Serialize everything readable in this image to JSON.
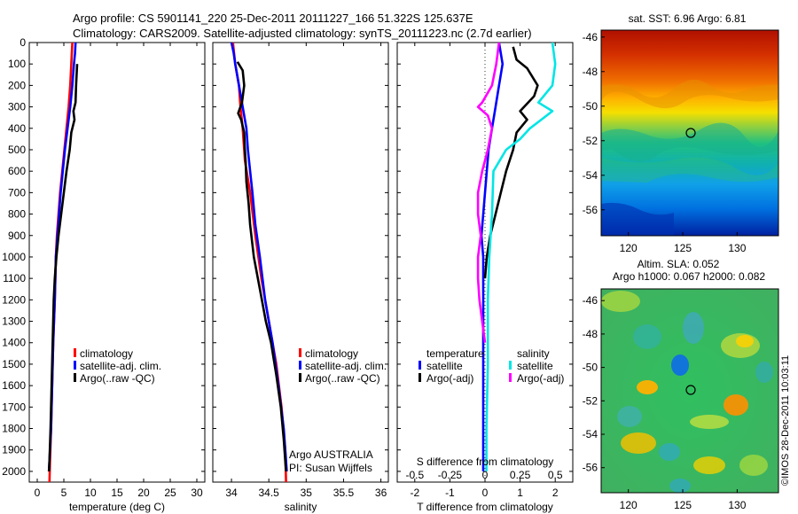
{
  "header": {
    "line1": "Argo profile: CS 5901141_220 25-Dec-2011 20111227_166 51.322S 125.637E",
    "line2": "Climatology: CARS2009. Satellite-adjusted climatology: synTS_20111223.nc (2.7d earlier)"
  },
  "colors": {
    "climatology": "#ff0000",
    "satellite": "#0000ff",
    "argo": "#000000",
    "sal_satellite": "#00e5e5",
    "sal_argo": "#ff00ff"
  },
  "chart_data": [
    {
      "type": "line",
      "xlabel": "temperature (deg C)",
      "ylabel": "",
      "xlim": [
        -1.5,
        31.5
      ],
      "ylim": [
        2050,
        0
      ],
      "xticks": [
        0,
        5,
        10,
        15,
        20,
        25,
        30
      ],
      "yticks": [
        0,
        100,
        200,
        300,
        400,
        500,
        600,
        700,
        800,
        900,
        1000,
        1100,
        1200,
        1300,
        1400,
        1500,
        1600,
        1700,
        1800,
        1900,
        2000
      ],
      "legend": [
        "climatology",
        "satellite-adj. clim.",
        "Argo(..raw -QC)"
      ],
      "series": [
        {
          "name": "climatology",
          "color": "climatology",
          "points": [
            [
              6.6,
              0
            ],
            [
              6.5,
              50
            ],
            [
              6.4,
              100
            ],
            [
              6.2,
              200
            ],
            [
              5.9,
              300
            ],
            [
              5.5,
              400
            ],
            [
              5.1,
              500
            ],
            [
              4.7,
              600
            ],
            [
              4.3,
              700
            ],
            [
              4.0,
              800
            ],
            [
              3.7,
              900
            ],
            [
              3.5,
              1000
            ],
            [
              3.3,
              1200
            ],
            [
              3.0,
              1400
            ],
            [
              2.8,
              1600
            ],
            [
              2.6,
              1800
            ],
            [
              2.4,
              1950
            ],
            [
              2.3,
              2050
            ]
          ]
        },
        {
          "name": "satellite-adj. clim.",
          "color": "satellite",
          "points": [
            [
              7.2,
              0
            ],
            [
              7.1,
              50
            ],
            [
              6.9,
              100
            ],
            [
              6.6,
              200
            ],
            [
              6.2,
              300
            ],
            [
              5.7,
              400
            ],
            [
              5.2,
              500
            ],
            [
              4.8,
              600
            ],
            [
              4.4,
              700
            ],
            [
              4.1,
              800
            ],
            [
              3.8,
              900
            ],
            [
              3.5,
              1000
            ],
            [
              3.3,
              1200
            ],
            [
              3.0,
              1400
            ],
            [
              2.8,
              1600
            ],
            [
              2.6,
              1800
            ],
            [
              2.3,
              1950
            ],
            [
              2.2,
              2000
            ]
          ]
        },
        {
          "name": "Argo(..raw -QC)",
          "color": "argo",
          "points": [
            [
              7.5,
              100
            ],
            [
              7.3,
              200
            ],
            [
              7.2,
              280
            ],
            [
              6.8,
              320
            ],
            [
              7.0,
              360
            ],
            [
              6.4,
              420
            ],
            [
              6.1,
              500
            ],
            [
              5.5,
              600
            ],
            [
              5.0,
              700
            ],
            [
              4.5,
              800
            ],
            [
              4.0,
              900
            ],
            [
              3.6,
              1000
            ],
            [
              3.3,
              1100
            ],
            [
              3.1,
              1200
            ],
            [
              2.9,
              1400
            ],
            [
              2.7,
              1600
            ],
            [
              2.5,
              1800
            ],
            [
              2.3,
              1950
            ],
            [
              2.2,
              2000
            ]
          ]
        }
      ]
    },
    {
      "type": "line",
      "xlabel": "salinity",
      "ylabel": "",
      "xlim": [
        33.75,
        36.1
      ],
      "ylim": [
        2050,
        0
      ],
      "xticks": [
        34,
        34.5,
        35,
        35.5,
        36
      ],
      "legend": [
        "climatology",
        "satellite-adj. clim.",
        "Argo(..raw -QC)"
      ],
      "annotation": [
        "Argo AUSTRALIA",
        "PI: Susan Wijffels"
      ],
      "series": [
        {
          "name": "climatology",
          "color": "climatology",
          "points": [
            [
              34.02,
              0
            ],
            [
              34.05,
              100
            ],
            [
              34.1,
              200
            ],
            [
              34.12,
              300
            ],
            [
              34.15,
              400
            ],
            [
              34.17,
              500
            ],
            [
              34.18,
              550
            ],
            [
              34.25,
              700
            ],
            [
              34.32,
              900
            ],
            [
              34.4,
              1100
            ],
            [
              34.5,
              1300
            ],
            [
              34.6,
              1500
            ],
            [
              34.67,
              1700
            ],
            [
              34.72,
              1900
            ],
            [
              34.73,
              2050
            ]
          ]
        },
        {
          "name": "satellite-adj. clim.",
          "color": "satellite",
          "points": [
            [
              34.0,
              0
            ],
            [
              34.03,
              50
            ],
            [
              34.05,
              100
            ],
            [
              34.1,
              200
            ],
            [
              34.15,
              300
            ],
            [
              34.2,
              400
            ],
            [
              34.22,
              500
            ],
            [
              34.25,
              600
            ],
            [
              34.28,
              700
            ],
            [
              34.32,
              850
            ],
            [
              34.38,
              1000
            ],
            [
              34.45,
              1200
            ],
            [
              34.55,
              1400
            ],
            [
              34.63,
              1600
            ],
            [
              34.7,
              1800
            ],
            [
              34.73,
              1950
            ],
            [
              34.74,
              2000
            ]
          ]
        },
        {
          "name": "Argo(..raw -QC)",
          "color": "argo",
          "points": [
            [
              34.08,
              90
            ],
            [
              34.15,
              130
            ],
            [
              34.17,
              200
            ],
            [
              34.14,
              280
            ],
            [
              34.09,
              330
            ],
            [
              34.13,
              360
            ],
            [
              34.17,
              420
            ],
            [
              34.18,
              500
            ],
            [
              34.19,
              560
            ],
            [
              34.2,
              650
            ],
            [
              34.23,
              750
            ],
            [
              34.25,
              850
            ],
            [
              34.3,
              1000
            ],
            [
              34.38,
              1150
            ],
            [
              34.46,
              1300
            ],
            [
              34.53,
              1400
            ],
            [
              34.6,
              1550
            ],
            [
              34.66,
              1700
            ],
            [
              34.7,
              1850
            ],
            [
              34.72,
              1950
            ],
            [
              34.73,
              2000
            ]
          ]
        }
      ]
    },
    {
      "type": "line",
      "xlabel": "T difference from climatology",
      "x2label": "S difference from climatology",
      "ylabel": "",
      "xlim": [
        -2.5,
        2.5
      ],
      "x2lim": [
        -0.625,
        0.625
      ],
      "ylim": [
        2050,
        0
      ],
      "xticks": [
        -2,
        -1,
        0,
        1,
        2
      ],
      "x2ticks": [
        "-0.5",
        "-0.25",
        "0",
        "0.25",
        "0.5"
      ],
      "legend_temperature": {
        "title": "temperature",
        "items": [
          "satellite",
          "Argo(-adj)"
        ]
      },
      "legend_salinity": {
        "title": "salinity",
        "items": [
          "satellite",
          "Argo(-adj)"
        ]
      },
      "series": [
        {
          "name": "satellite",
          "group": "temperature",
          "color": "satellite",
          "points": [
            [
              0.4,
              0
            ],
            [
              0.45,
              50
            ],
            [
              0.5,
              100
            ],
            [
              0.4,
              200
            ],
            [
              0.3,
              300
            ],
            [
              0.2,
              400
            ],
            [
              0.1,
              500
            ],
            [
              0.05,
              600
            ],
            [
              0,
              700
            ],
            [
              -0.05,
              800
            ],
            [
              -0.1,
              900
            ],
            [
              -0.05,
              1000
            ],
            [
              -0.05,
              1200
            ],
            [
              -0.05,
              1400
            ],
            [
              -0.05,
              1600
            ],
            [
              -0.05,
              1800
            ],
            [
              -0.05,
              2000
            ]
          ]
        },
        {
          "name": "Argo(-adj)",
          "group": "temperature",
          "color": "argo",
          "points": [
            [
              0.8,
              20
            ],
            [
              0.9,
              80
            ],
            [
              1.2,
              120
            ],
            [
              1.5,
              200
            ],
            [
              1.4,
              250
            ],
            [
              1.0,
              320
            ],
            [
              1.2,
              360
            ],
            [
              0.9,
              420
            ],
            [
              0.8,
              500
            ],
            [
              0.6,
              600
            ],
            [
              0.45,
              700
            ],
            [
              0.3,
              800
            ],
            [
              0.15,
              900
            ],
            [
              0.05,
              1000
            ],
            [
              0,
              1100
            ]
          ]
        },
        {
          "name": "satellite",
          "group": "salinity",
          "color": "sal_satellite",
          "points": [
            [
              0.48,
              0
            ],
            [
              0.5,
              100
            ],
            [
              0.48,
              200
            ],
            [
              0.38,
              280
            ],
            [
              0.48,
              320
            ],
            [
              0.4,
              360
            ],
            [
              0.32,
              400
            ],
            [
              0.25,
              450
            ],
            [
              0.15,
              500
            ],
            [
              0.06,
              600
            ],
            [
              0.05,
              800
            ],
            [
              0.03,
              1000
            ],
            [
              0.02,
              1200
            ],
            [
              0.02,
              1500
            ],
            [
              0.01,
              1800
            ],
            [
              0.01,
              2000
            ]
          ]
        },
        {
          "name": "Argo(-adj)",
          "group": "salinity",
          "color": "sal_argo",
          "points": [
            [
              0.1,
              0
            ],
            [
              0.08,
              100
            ],
            [
              0.05,
              200
            ],
            [
              -0.02,
              280
            ],
            [
              -0.05,
              300
            ],
            [
              0.02,
              340
            ],
            [
              0.05,
              400
            ],
            [
              0.02,
              500
            ],
            [
              -0.02,
              600
            ],
            [
              -0.05,
              700
            ],
            [
              -0.05,
              800
            ],
            [
              -0.03,
              900
            ],
            [
              -0.05,
              1000
            ],
            [
              -0.05,
              1100
            ],
            [
              -0.04,
              1200
            ],
            [
              -0.02,
              1300
            ],
            [
              0,
              1400
            ]
          ]
        }
      ]
    },
    {
      "type": "heatmap",
      "title": "sat. SST: 6.96 Argo: 6.81",
      "xlim": [
        117.5,
        133.8
      ],
      "ylim": [
        -57.5,
        -45.6
      ],
      "xticks": [
        120,
        125,
        130
      ],
      "yticks": [
        -46,
        -48,
        -50,
        -52,
        -54,
        -56
      ],
      "marker": [
        125.64,
        -51.32
      ]
    },
    {
      "type": "heatmap",
      "title": "Altim. SLA: 0.052",
      "subtitle": "Argo h1000: 0.067 h2000: 0.082",
      "xlim": [
        117.5,
        133.8
      ],
      "ylim": [
        -57.5,
        -45.3
      ],
      "xticks": [
        120,
        125,
        130
      ],
      "yticks": [
        -46,
        -48,
        -50,
        -52,
        -54,
        -56
      ],
      "marker": [
        125.64,
        -51.32
      ],
      "side_label": "©IMOS 28-Dec-2011 10:03:11"
    }
  ]
}
